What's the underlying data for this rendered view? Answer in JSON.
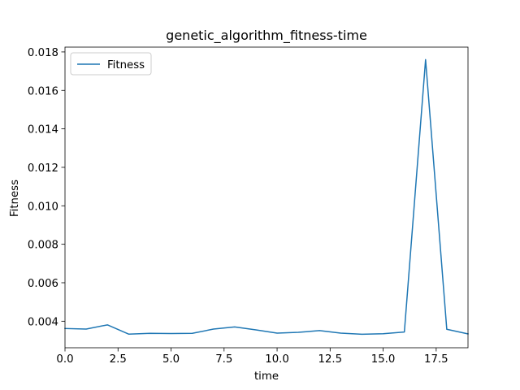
{
  "chart_data": {
    "type": "line",
    "title": "genetic_algorithm_fitness-time",
    "xlabel": "time",
    "ylabel": "Fitness",
    "xlim": [
      0,
      19
    ],
    "ylim": [
      0.00262,
      0.01825
    ],
    "x_ticks": [
      "0.0",
      "2.5",
      "5.0",
      "7.5",
      "10.0",
      "12.5",
      "15.0",
      "17.5"
    ],
    "x_tick_values": [
      0,
      2.5,
      5,
      7.5,
      10,
      12.5,
      15,
      17.5
    ],
    "y_ticks": [
      "0.004",
      "0.006",
      "0.008",
      "0.010",
      "0.012",
      "0.014",
      "0.016",
      "0.018"
    ],
    "y_tick_values": [
      0.004,
      0.006,
      0.008,
      0.01,
      0.012,
      0.014,
      0.016,
      0.018
    ],
    "legend": {
      "position": "upper-left",
      "entries": [
        "Fitness"
      ]
    },
    "grid": false,
    "series": [
      {
        "name": "Fitness",
        "color": "#1f77b4",
        "x": [
          0,
          1,
          2,
          3,
          4,
          5,
          6,
          7,
          8,
          9,
          10,
          11,
          12,
          13,
          14,
          15,
          16,
          17,
          18,
          19
        ],
        "y": [
          0.00362,
          0.00359,
          0.00381,
          0.00333,
          0.00337,
          0.00336,
          0.00337,
          0.00359,
          0.0037,
          0.00355,
          0.00338,
          0.00342,
          0.00351,
          0.00338,
          0.00332,
          0.00335,
          0.00344,
          0.0176,
          0.00358,
          0.00334
        ]
      }
    ]
  }
}
